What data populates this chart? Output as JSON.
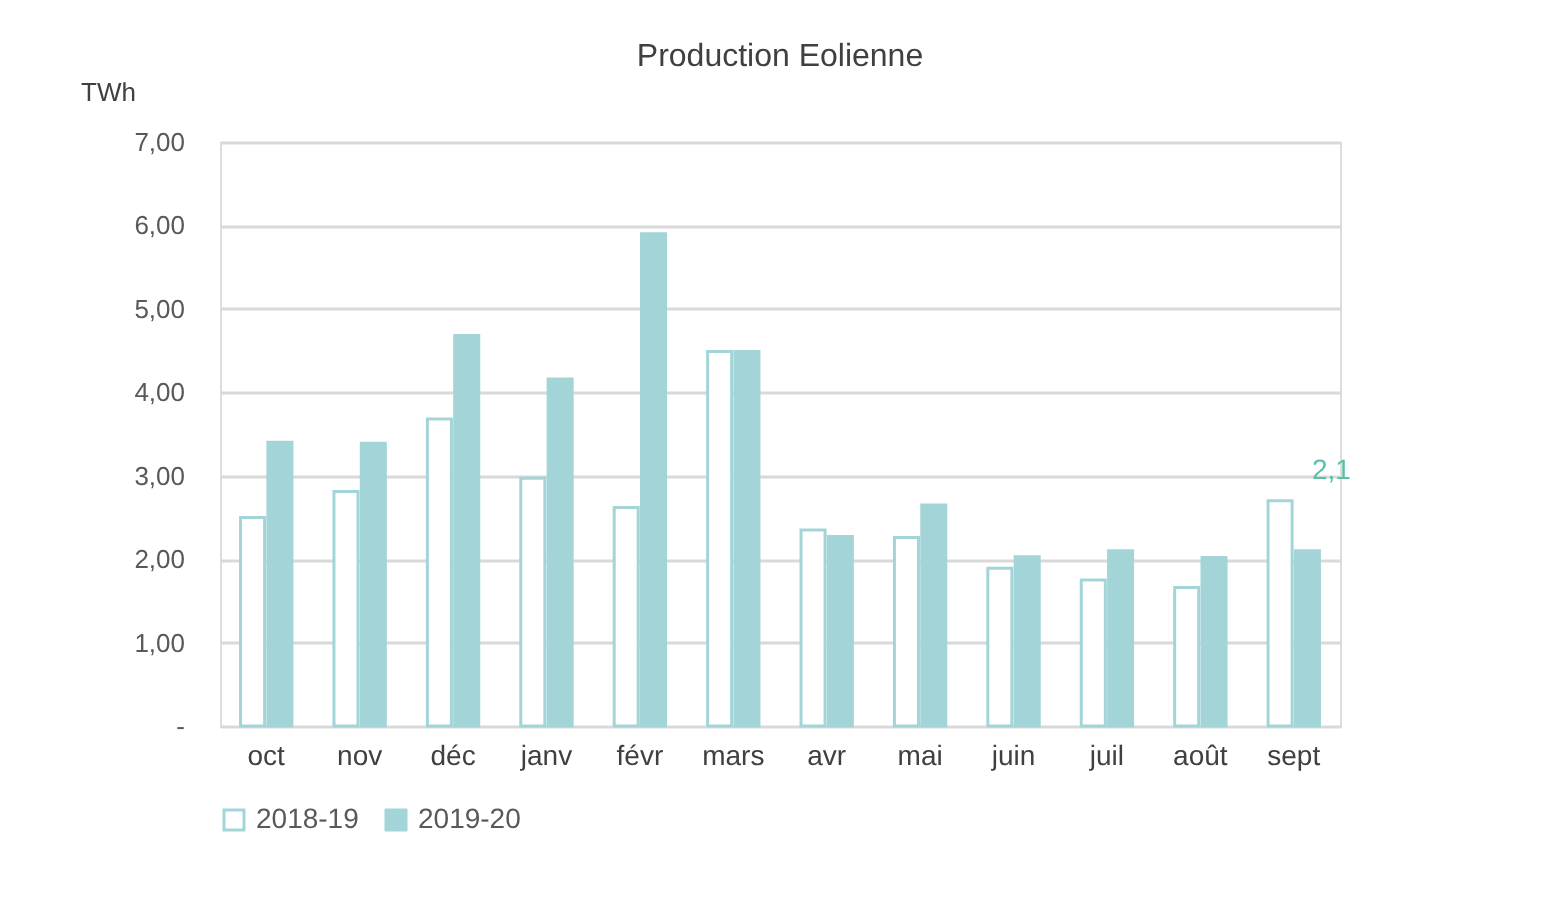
{
  "chart_data": {
    "type": "bar",
    "title": "Production Eolienne",
    "ylabel": "TWh",
    "categories": [
      "oct",
      "nov",
      "déc",
      "janv",
      "févr",
      "mars",
      "avr",
      "mai",
      "juin",
      "juil",
      "août",
      "sept"
    ],
    "series": [
      {
        "name": "2018-19",
        "color": "#a3d5d8",
        "values": [
          2.5,
          2.81,
          3.68,
          2.97,
          2.62,
          4.49,
          2.35,
          2.26,
          1.89,
          1.75,
          1.66,
          2.7
        ]
      },
      {
        "name": "2019-20",
        "color": "#a3d5d8",
        "values": [
          3.4,
          3.39,
          4.68,
          4.16,
          5.9,
          4.49,
          2.27,
          2.65,
          2.03,
          2.1,
          2.02,
          2.1
        ],
        "value_labels": [
          null,
          null,
          null,
          null,
          null,
          null,
          null,
          null,
          null,
          null,
          null,
          "2,1"
        ]
      }
    ],
    "ylim": [
      0,
      7
    ],
    "yticks": [
      {
        "value": 0,
        "label": "-"
      },
      {
        "value": 1,
        "label": "1,00"
      },
      {
        "value": 2,
        "label": "2,00"
      },
      {
        "value": 3,
        "label": "3,00"
      },
      {
        "value": 4,
        "label": "4,00"
      },
      {
        "value": 5,
        "label": "5,00"
      },
      {
        "value": 6,
        "label": "6,00"
      },
      {
        "value": 7,
        "label": "7,00"
      }
    ],
    "grid": "y",
    "legend": "bottom"
  }
}
